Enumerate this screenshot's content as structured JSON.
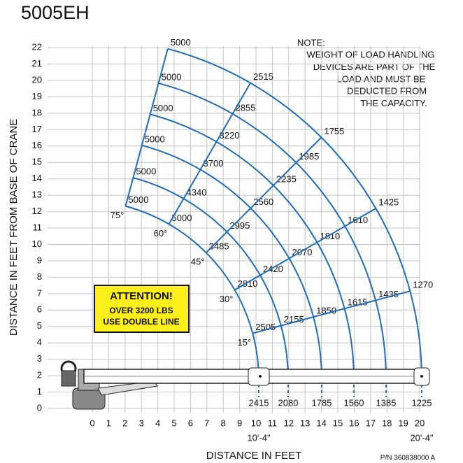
{
  "title": "5005EH",
  "note": [
    "NOTE:",
    "WEIGHT OF LOAD HANDLING",
    "DEVICES ARE PART OF THE",
    "LOAD AND MUST BE",
    "DEDUCTED FROM",
    "THE CAPACITY."
  ],
  "attention": {
    "title": "ATTENTION!",
    "lines": [
      "OVER 3200 LBS",
      "USE DOUBLE LINE"
    ]
  },
  "y_axis": {
    "label": "DISTANCE IN FEET FROM BASE OF CRANE",
    "ticks": [
      0,
      1,
      2,
      3,
      4,
      5,
      6,
      7,
      8,
      9,
      10,
      11,
      12,
      13,
      14,
      15,
      16,
      17,
      18,
      19,
      20,
      21,
      22
    ]
  },
  "x_axis": {
    "label": "DISTANCE IN FEET",
    "ticks": [
      0,
      1,
      2,
      3,
      4,
      5,
      6,
      7,
      8,
      9,
      10,
      11,
      12,
      13,
      14,
      15,
      16,
      17,
      18,
      19,
      20
    ]
  },
  "angles": [
    {
      "value": 15,
      "label": "15°"
    },
    {
      "value": 30,
      "label": "30°"
    },
    {
      "value": 45,
      "label": "45°"
    },
    {
      "value": 60,
      "label": "60°"
    },
    {
      "value": 75,
      "label": "75°"
    }
  ],
  "arcs": [
    {
      "capacities": [
        2505,
        2810,
        3485,
        5000,
        5000
      ],
      "base_capacity": 2415,
      "reach": "10'-4\""
    },
    {
      "capacities": [
        2155,
        2420,
        2995,
        4340,
        5000
      ],
      "base_capacity": 2080
    },
    {
      "capacities": [
        1850,
        2070,
        2560,
        3700,
        5000
      ],
      "base_capacity": 1785
    },
    {
      "capacities": [
        1615,
        1810,
        2235,
        3220,
        5000
      ],
      "base_capacity": 1560
    },
    {
      "capacities": [
        1435,
        1610,
        1985,
        2855,
        5000
      ],
      "base_capacity": 1385
    },
    {
      "capacities": [
        1270,
        1425,
        1755,
        2515,
        5000
      ],
      "base_capacity": 1225,
      "reach": "20'-4\""
    }
  ],
  "part_number": "P/N 360838000 A"
}
